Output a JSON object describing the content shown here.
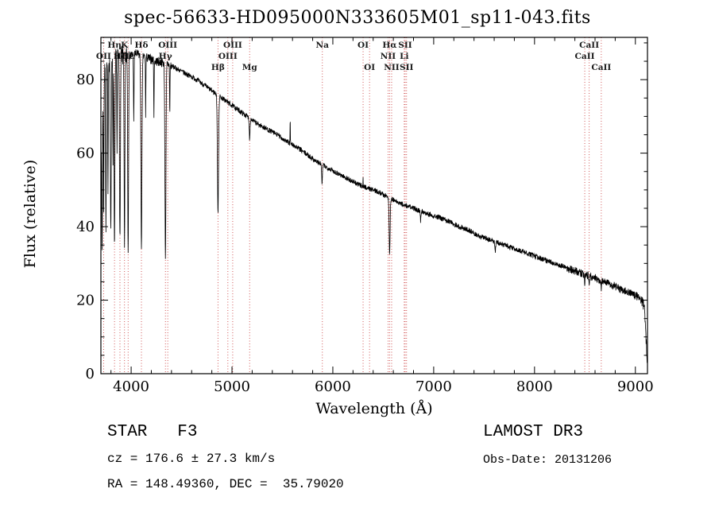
{
  "chart_data": {
    "type": "line",
    "title": "spec-56633-HD095000N333605M01_sp11-043.fits",
    "xlabel": "Wavelength (Å)",
    "ylabel": "Flux (relative)",
    "xlim": [
      3700,
      9120
    ],
    "ylim": [
      0,
      91.5
    ],
    "xticks": [
      4000,
      5000,
      6000,
      7000,
      8000,
      9000
    ],
    "yticks": [
      0,
      20,
      40,
      60,
      80
    ],
    "x_minor_step": 200,
    "y_minor_step": 5,
    "line_color": "#000000",
    "marker_line_color": "#cc4444",
    "marker_label_color": "#1a1a1a",
    "grid": false,
    "continuum_anchors": [
      [
        3700,
        55
      ],
      [
        3720,
        76
      ],
      [
        3740,
        82
      ],
      [
        3780,
        85
      ],
      [
        3850,
        86
      ],
      [
        3950,
        86.5
      ],
      [
        4050,
        87
      ],
      [
        4150,
        86
      ],
      [
        4250,
        85
      ],
      [
        4350,
        84.5
      ],
      [
        4450,
        83
      ],
      [
        4550,
        81.5
      ],
      [
        4650,
        80
      ],
      [
        4750,
        78
      ],
      [
        4850,
        76
      ],
      [
        4950,
        74
      ],
      [
        5050,
        72
      ],
      [
        5150,
        70
      ],
      [
        5250,
        68
      ],
      [
        5350,
        66.5
      ],
      [
        5450,
        65
      ],
      [
        5550,
        63
      ],
      [
        5650,
        61.5
      ],
      [
        5750,
        59.5
      ],
      [
        5850,
        57.5
      ],
      [
        5950,
        56
      ],
      [
        6050,
        54.5
      ],
      [
        6150,
        53
      ],
      [
        6250,
        51.5
      ],
      [
        6350,
        50.5
      ],
      [
        6450,
        49.5
      ],
      [
        6550,
        48
      ],
      [
        6650,
        46.5
      ],
      [
        6750,
        45.5
      ],
      [
        6850,
        44.5
      ],
      [
        6950,
        43.5
      ],
      [
        7050,
        42.5
      ],
      [
        7150,
        41.5
      ],
      [
        7250,
        40
      ],
      [
        7350,
        39
      ],
      [
        7450,
        37.5
      ],
      [
        7550,
        36.5
      ],
      [
        7650,
        35.5
      ],
      [
        7750,
        34.5
      ],
      [
        7850,
        33.5
      ],
      [
        7950,
        32.5
      ],
      [
        8050,
        31.5
      ],
      [
        8150,
        30.5
      ],
      [
        8250,
        29.5
      ],
      [
        8350,
        28.5
      ],
      [
        8450,
        27.5
      ],
      [
        8550,
        26.5
      ],
      [
        8650,
        25.5
      ],
      [
        8750,
        24.5
      ],
      [
        8850,
        23
      ],
      [
        8950,
        22
      ],
      [
        9020,
        21
      ],
      [
        9060,
        20
      ],
      [
        9090,
        18
      ],
      [
        9105,
        10
      ],
      [
        9120,
        2
      ]
    ],
    "absorption_lines": [
      {
        "center": 3712,
        "depth": 0.5,
        "width": 8
      },
      {
        "center": 3727,
        "depth": 0.45,
        "width": 6
      },
      {
        "center": 3750,
        "depth": 0.52,
        "width": 7
      },
      {
        "center": 3770,
        "depth": 0.45,
        "width": 6
      },
      {
        "center": 3798,
        "depth": 0.55,
        "width": 10
      },
      {
        "center": 3820,
        "depth": 0.35,
        "width": 5
      },
      {
        "center": 3835,
        "depth": 0.6,
        "width": 10
      },
      {
        "center": 3860,
        "depth": 0.32,
        "width": 5
      },
      {
        "center": 3889,
        "depth": 0.6,
        "width": 10
      },
      {
        "center": 3934,
        "depth": 0.62,
        "width": 9
      },
      {
        "center": 3970,
        "depth": 0.62,
        "width": 10
      },
      {
        "center": 4026,
        "depth": 0.22,
        "width": 6
      },
      {
        "center": 4102,
        "depth": 0.6,
        "width": 12
      },
      {
        "center": 4144,
        "depth": 0.18,
        "width": 5
      },
      {
        "center": 4226,
        "depth": 0.18,
        "width": 5
      },
      {
        "center": 4340,
        "depth": 0.62,
        "width": 12
      },
      {
        "center": 4383,
        "depth": 0.16,
        "width": 5
      },
      {
        "center": 4861,
        "depth": 0.42,
        "width": 13
      },
      {
        "center": 5175,
        "depth": 0.08,
        "width": 9
      },
      {
        "center": 5893,
        "depth": 0.1,
        "width": 8
      },
      {
        "center": 6563,
        "depth": 0.32,
        "width": 11
      },
      {
        "center": 6870,
        "depth": 0.06,
        "width": 8
      },
      {
        "center": 7610,
        "depth": 0.08,
        "width": 10
      },
      {
        "center": 8498,
        "depth": 0.08,
        "width": 7
      },
      {
        "center": 8542,
        "depth": 0.1,
        "width": 7
      },
      {
        "center": 8662,
        "depth": 0.09,
        "width": 7
      }
    ],
    "emission_lines": [
      {
        "center": 5577,
        "height": 7,
        "width": 4
      },
      {
        "center": 6300,
        "height": 2,
        "width": 3
      }
    ],
    "noise": {
      "blue": 3.0,
      "blue_mid": 1.3,
      "mid": 0.7,
      "red": 1.1,
      "far_red": 1.5
    },
    "line_markers": [
      {
        "label": "OII",
        "wavelength": 3727,
        "row": 2
      },
      {
        "label": "Hη",
        "wavelength": 3835,
        "row": 1
      },
      {
        "label": "Hζ",
        "wavelength": 3889,
        "row": 2
      },
      {
        "label": "K",
        "wavelength": 3934,
        "row": 1
      },
      {
        "label": "Hε",
        "wavelength": 3970,
        "row": 2
      },
      {
        "label": "Hδ",
        "wavelength": 4102,
        "row": 1
      },
      {
        "label": "Hγ",
        "wavelength": 4340,
        "row": 2
      },
      {
        "label": "OIII",
        "wavelength": 4363,
        "row": 1
      },
      {
        "label": "Hβ",
        "wavelength": 4861,
        "row": 3
      },
      {
        "label": "OIII",
        "wavelength": 4959,
        "row": 2
      },
      {
        "label": "OIII",
        "wavelength": 5007,
        "row": 1
      },
      {
        "label": "Mg",
        "wavelength": 5175,
        "row": 3
      },
      {
        "label": "Na",
        "wavelength": 5896,
        "row": 1
      },
      {
        "label": "OI",
        "wavelength": 6300,
        "row": 1
      },
      {
        "label": "OI",
        "wavelength": 6364,
        "row": 3
      },
      {
        "label": "NII",
        "wavelength": 6548,
        "row": 2
      },
      {
        "label": "Hα",
        "wavelength": 6563,
        "row": 1
      },
      {
        "label": "NII",
        "wavelength": 6583,
        "row": 3
      },
      {
        "label": "Li",
        "wavelength": 6708,
        "row": 2
      },
      {
        "label": "SII",
        "wavelength": 6717,
        "row": 1
      },
      {
        "label": "SII",
        "wavelength": 6731,
        "row": 3
      },
      {
        "label": "CaII",
        "wavelength": 8498,
        "row": 2
      },
      {
        "label": "CaII",
        "wavelength": 8542,
        "row": 1
      },
      {
        "label": "CaII",
        "wavelength": 8662,
        "row": 3
      }
    ]
  },
  "annotations": {
    "star_type": "STAR   F3",
    "cz": "cz = 176.6 ± 27.3 km/s",
    "ra_dec": "RA = 148.49360, DEC =  35.79020",
    "survey": "LAMOST DR3",
    "obs_date": "Obs-Date: 20131206"
  }
}
